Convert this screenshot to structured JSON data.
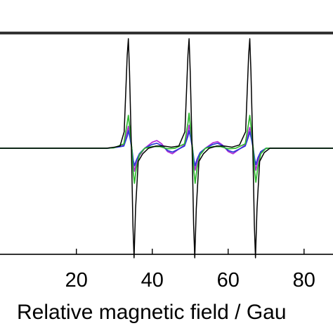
{
  "chart_data": {
    "type": "line",
    "title": "",
    "xlabel": "Relative magnetic field / Gau",
    "ylabel": "",
    "xlim": [
      -0.5,
      88
    ],
    "ylim": [
      -1.0,
      1.0
    ],
    "x_ticks": [
      "20",
      "40",
      "60",
      "80"
    ],
    "x_tick_values": [
      20,
      40,
      60,
      80
    ],
    "grid": false,
    "legend": "none",
    "line_centers": [
      34,
      50,
      66
    ],
    "series": [
      {
        "color": "#000000",
        "description": "black spectrum, largest amplitude",
        "points": [
          [
            -0.5,
            0.0
          ],
          [
            10,
            0.0
          ],
          [
            20,
            0.0
          ],
          [
            28,
            0.0
          ],
          [
            30,
            0.01
          ],
          [
            31.5,
            0.02
          ],
          [
            32.6,
            0.15
          ],
          [
            33.4,
            0.85
          ],
          [
            33.7,
            1.0
          ],
          [
            34.0,
            0.7
          ],
          [
            34.5,
            0.0
          ],
          [
            34.9,
            -0.7
          ],
          [
            35.2,
            -1.0
          ],
          [
            35.6,
            -0.55
          ],
          [
            36.3,
            -0.12
          ],
          [
            37.5,
            -0.05
          ],
          [
            39,
            0.0
          ],
          [
            41,
            0.02
          ],
          [
            43,
            0.02
          ],
          [
            45,
            0.01
          ],
          [
            47,
            0.02
          ],
          [
            48.6,
            0.15
          ],
          [
            49.4,
            0.85
          ],
          [
            49.7,
            1.0
          ],
          [
            50.0,
            0.7
          ],
          [
            50.5,
            0.0
          ],
          [
            50.9,
            -0.7
          ],
          [
            51.2,
            -1.0
          ],
          [
            51.6,
            -0.55
          ],
          [
            52.3,
            -0.12
          ],
          [
            53.5,
            -0.05
          ],
          [
            55,
            0.0
          ],
          [
            57,
            0.02
          ],
          [
            59,
            0.02
          ],
          [
            61,
            0.01
          ],
          [
            63,
            0.03
          ],
          [
            64.6,
            0.15
          ],
          [
            65.4,
            0.85
          ],
          [
            65.7,
            1.0
          ],
          [
            66.0,
            0.7
          ],
          [
            66.5,
            0.0
          ],
          [
            66.9,
            -0.7
          ],
          [
            67.2,
            -1.0
          ],
          [
            67.6,
            -0.55
          ],
          [
            68.3,
            -0.12
          ],
          [
            69.5,
            -0.04
          ],
          [
            71,
            0.0
          ],
          [
            80,
            0.0
          ],
          [
            88,
            0.0
          ]
        ]
      },
      {
        "color": "#2db82d",
        "description": "green spectrum",
        "points": [
          [
            -0.5,
            0.0
          ],
          [
            28,
            0.0
          ],
          [
            30,
            0.005
          ],
          [
            32.5,
            0.04
          ],
          [
            33.4,
            0.23
          ],
          [
            33.7,
            0.3
          ],
          [
            34.1,
            0.18
          ],
          [
            34.6,
            0.0
          ],
          [
            35.0,
            -0.22
          ],
          [
            35.3,
            -0.32
          ],
          [
            35.8,
            -0.18
          ],
          [
            36.6,
            -0.06
          ],
          [
            38,
            0.0
          ],
          [
            40,
            0.015
          ],
          [
            42,
            0.015
          ],
          [
            44,
            -0.005
          ],
          [
            46,
            0.0
          ],
          [
            48.5,
            0.04
          ],
          [
            49.4,
            0.23
          ],
          [
            49.7,
            0.32
          ],
          [
            50.1,
            0.18
          ],
          [
            50.6,
            0.0
          ],
          [
            51.0,
            -0.22
          ],
          [
            51.3,
            -0.32
          ],
          [
            51.8,
            -0.18
          ],
          [
            52.6,
            -0.06
          ],
          [
            54,
            0.0
          ],
          [
            56,
            0.015
          ],
          [
            58,
            0.015
          ],
          [
            60,
            -0.005
          ],
          [
            62,
            0.0
          ],
          [
            64.5,
            0.04
          ],
          [
            65.4,
            0.23
          ],
          [
            65.7,
            0.3
          ],
          [
            66.1,
            0.18
          ],
          [
            66.6,
            0.0
          ],
          [
            67.0,
            -0.22
          ],
          [
            67.3,
            -0.31
          ],
          [
            67.8,
            -0.18
          ],
          [
            68.6,
            -0.05
          ],
          [
            70,
            0.0
          ],
          [
            88,
            0.0
          ]
        ]
      },
      {
        "color": "#b02bd6",
        "description": "magenta spectrum",
        "points": [
          [
            -0.5,
            0.0
          ],
          [
            28,
            0.0
          ],
          [
            30,
            0.005
          ],
          [
            32.5,
            0.03
          ],
          [
            33.4,
            0.15
          ],
          [
            33.7,
            0.2
          ],
          [
            34.1,
            0.12
          ],
          [
            34.6,
            0.0
          ],
          [
            35.0,
            -0.14
          ],
          [
            35.3,
            -0.21
          ],
          [
            35.8,
            -0.14
          ],
          [
            36.6,
            -0.07
          ],
          [
            38,
            0.0
          ],
          [
            40,
            0.055
          ],
          [
            41.2,
            0.07
          ],
          [
            42.5,
            0.04
          ],
          [
            44,
            -0.03
          ],
          [
            45.3,
            -0.05
          ],
          [
            46.5,
            -0.02
          ],
          [
            48.5,
            0.03
          ],
          [
            49.4,
            0.15
          ],
          [
            49.7,
            0.21
          ],
          [
            50.1,
            0.12
          ],
          [
            50.6,
            0.0
          ],
          [
            51.0,
            -0.14
          ],
          [
            51.3,
            -0.2
          ],
          [
            51.8,
            -0.13
          ],
          [
            52.6,
            -0.06
          ],
          [
            54,
            0.0
          ],
          [
            56,
            0.05
          ],
          [
            57.2,
            0.06
          ],
          [
            58.5,
            0.03
          ],
          [
            60,
            -0.03
          ],
          [
            61.3,
            -0.05
          ],
          [
            62.5,
            -0.02
          ],
          [
            64.5,
            0.03
          ],
          [
            65.4,
            0.15
          ],
          [
            65.7,
            0.19
          ],
          [
            66.1,
            0.12
          ],
          [
            66.6,
            0.0
          ],
          [
            67.0,
            -0.14
          ],
          [
            67.3,
            -0.2
          ],
          [
            67.8,
            -0.12
          ],
          [
            68.6,
            -0.04
          ],
          [
            70,
            0.0
          ],
          [
            88,
            0.0
          ]
        ]
      },
      {
        "color": "#2b3bd6",
        "description": "blue spectrum",
        "points": [
          [
            -0.5,
            0.0
          ],
          [
            28,
            0.0
          ],
          [
            30,
            0.005
          ],
          [
            32.5,
            0.02
          ],
          [
            33.4,
            0.11
          ],
          [
            33.7,
            0.16
          ],
          [
            34.1,
            0.1
          ],
          [
            34.6,
            0.0
          ],
          [
            35.0,
            -0.11
          ],
          [
            35.3,
            -0.16
          ],
          [
            35.8,
            -0.11
          ],
          [
            36.6,
            -0.05
          ],
          [
            38,
            0.0
          ],
          [
            40,
            0.035
          ],
          [
            41.2,
            0.045
          ],
          [
            42.5,
            0.025
          ],
          [
            44,
            -0.02
          ],
          [
            45.3,
            -0.035
          ],
          [
            46.5,
            -0.015
          ],
          [
            48.5,
            0.02
          ],
          [
            49.4,
            0.11
          ],
          [
            49.7,
            0.16
          ],
          [
            50.1,
            0.1
          ],
          [
            50.6,
            0.0
          ],
          [
            51.0,
            -0.11
          ],
          [
            51.3,
            -0.16
          ],
          [
            51.8,
            -0.1
          ],
          [
            52.6,
            -0.04
          ],
          [
            54,
            0.0
          ],
          [
            56,
            0.035
          ],
          [
            57.2,
            0.045
          ],
          [
            58.5,
            0.025
          ],
          [
            60,
            -0.02
          ],
          [
            61.3,
            -0.035
          ],
          [
            62.5,
            -0.015
          ],
          [
            64.5,
            0.02
          ],
          [
            65.4,
            0.11
          ],
          [
            65.7,
            0.15
          ],
          [
            66.1,
            0.09
          ],
          [
            66.6,
            0.0
          ],
          [
            67.0,
            -0.1
          ],
          [
            67.3,
            -0.15
          ],
          [
            67.8,
            -0.09
          ],
          [
            68.6,
            -0.03
          ],
          [
            70,
            0.0
          ],
          [
            88,
            0.0
          ]
        ]
      }
    ]
  }
}
